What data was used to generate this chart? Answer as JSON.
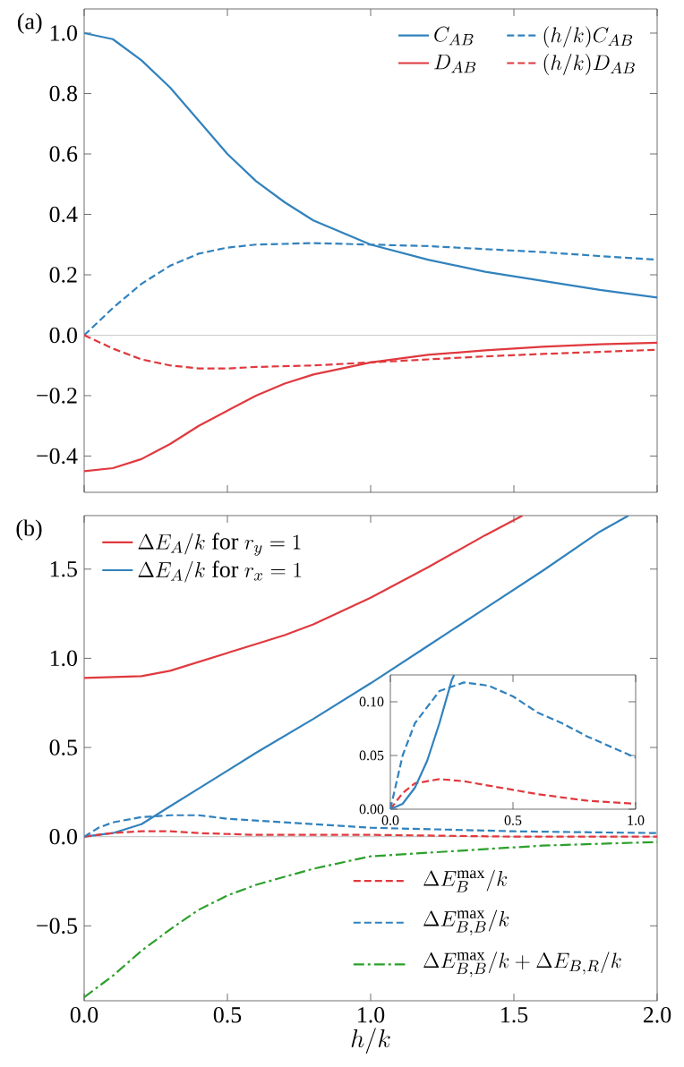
{
  "chart_data": [
    {
      "type": "line",
      "title": "(a)",
      "xlim": [
        0,
        2
      ],
      "ylim": [
        -0.52,
        1.08
      ],
      "tick_labels": "y",
      "legend": "top right",
      "xticks": [
        0,
        0.5,
        1,
        1.5,
        2
      ],
      "yticks": [
        {
          "value": -0.4,
          "label": "−0.4"
        },
        {
          "value": -0.2,
          "label": "−0.2"
        },
        {
          "value": 0,
          "label": "0.0"
        },
        {
          "value": 0.2,
          "label": "0.2"
        },
        {
          "value": 0.4,
          "label": "0.4"
        },
        {
          "value": 0.6,
          "label": "0.6"
        },
        {
          "value": 0.8,
          "label": "0.8"
        },
        {
          "value": 1.0,
          "label": "1.0"
        }
      ],
      "ref_lines": [
        {
          "axis": "y",
          "value": 0,
          "color": "#cccccc"
        }
      ],
      "series": [
        {
          "name": "C_{AB}",
          "color": "#3182bd",
          "line_style": "solid",
          "x": [
            0,
            0.1,
            0.2,
            0.3,
            0.4,
            0.5,
            0.6,
            0.7,
            0.8,
            0.9,
            1.0,
            1.2,
            1.4,
            1.6,
            1.8,
            2.0
          ],
          "values": [
            1.0,
            0.98,
            0.91,
            0.82,
            0.71,
            0.6,
            0.51,
            0.44,
            0.38,
            0.34,
            0.3,
            0.25,
            0.21,
            0.18,
            0.15,
            0.125
          ]
        },
        {
          "name": "(h/k)C_{AB}",
          "color": "#3182bd",
          "line_style": "dashed",
          "x": [
            0,
            0.1,
            0.2,
            0.3,
            0.4,
            0.5,
            0.6,
            0.8,
            1.0,
            1.2,
            1.4,
            1.6,
            1.8,
            2.0
          ],
          "values": [
            0,
            0.09,
            0.17,
            0.23,
            0.27,
            0.29,
            0.3,
            0.305,
            0.3,
            0.295,
            0.285,
            0.275,
            0.262,
            0.25
          ]
        },
        {
          "name": "D_{AB}",
          "color": "#e0393e",
          "line_style": "solid",
          "x": [
            0,
            0.1,
            0.2,
            0.3,
            0.4,
            0.5,
            0.6,
            0.7,
            0.8,
            1.0,
            1.2,
            1.4,
            1.6,
            1.8,
            2.0
          ],
          "values": [
            -0.45,
            -0.44,
            -0.41,
            -0.36,
            -0.3,
            -0.25,
            -0.2,
            -0.16,
            -0.13,
            -0.09,
            -0.065,
            -0.05,
            -0.038,
            -0.03,
            -0.025
          ]
        },
        {
          "name": "(h/k)D_{AB}",
          "color": "#e0393e",
          "line_style": "dashed",
          "x": [
            0,
            0.1,
            0.2,
            0.3,
            0.4,
            0.5,
            0.6,
            0.8,
            1.0,
            1.2,
            1.4,
            1.6,
            1.8,
            2.0
          ],
          "values": [
            0,
            -0.044,
            -0.08,
            -0.1,
            -0.11,
            -0.11,
            -0.105,
            -0.1,
            -0.09,
            -0.08,
            -0.07,
            -0.062,
            -0.055,
            -0.048
          ]
        }
      ]
    },
    {
      "type": "line",
      "title": "(b)",
      "xlabel": "h/k",
      "xlim": [
        0,
        2
      ],
      "ylim": [
        -0.92,
        1.8
      ],
      "legend": "top left",
      "xticks": [
        {
          "value": 0,
          "label": "0.0"
        },
        {
          "value": 0.5,
          "label": "0.5"
        },
        {
          "value": 1.0,
          "label": "1.0"
        },
        {
          "value": 1.5,
          "label": "1.5"
        },
        {
          "value": 2.0,
          "label": "2.0"
        }
      ],
      "yticks": [
        {
          "value": -0.5,
          "label": "−0.5"
        },
        {
          "value": 0,
          "label": "0.0"
        },
        {
          "value": 0.5,
          "label": "0.5"
        },
        {
          "value": 1.0,
          "label": "1.0"
        },
        {
          "value": 1.5,
          "label": "1.5"
        }
      ],
      "ref_lines": [
        {
          "axis": "y",
          "value": 0,
          "color": "#cccccc"
        }
      ],
      "series": [
        {
          "name": "\\Delta E_A/k\\mathrm{\\ for\\ }r_y = 1",
          "color": "#e0393e",
          "line_style": "solid",
          "x": [
            0,
            0.2,
            0.3,
            0.4,
            0.5,
            0.6,
            0.7,
            0.8,
            1.0,
            1.2,
            1.4,
            1.53
          ],
          "values": [
            0.89,
            0.9,
            0.93,
            0.98,
            1.03,
            1.08,
            1.13,
            1.19,
            1.34,
            1.51,
            1.69,
            1.8
          ]
        },
        {
          "name": "\\Delta E_A/k\\mathrm{\\ for\\ }r_x = 1",
          "color": "#3182bd",
          "line_style": "solid",
          "x": [
            0,
            0.1,
            0.2,
            0.25,
            0.3,
            0.4,
            0.5,
            0.6,
            0.8,
            1.0,
            1.2,
            1.4,
            1.6,
            1.8,
            1.9
          ],
          "values": [
            0,
            0.02,
            0.07,
            0.12,
            0.17,
            0.27,
            0.37,
            0.47,
            0.66,
            0.86,
            1.07,
            1.28,
            1.49,
            1.71,
            1.8
          ]
        },
        {
          "name": "\\Delta E_B^{\\mathrm{max}}/k",
          "color": "#e0393e",
          "line_style": "dashed",
          "x": [
            0,
            0.1,
            0.2,
            0.3,
            0.4,
            0.6,
            0.8,
            1.0,
            1.5,
            2.0
          ],
          "values": [
            0,
            0.02,
            0.03,
            0.03,
            0.02,
            0.01,
            0.01,
            0.01,
            0,
            0
          ]
        },
        {
          "name": "\\Delta E_{B,B}^{\\mathrm{max}}/k",
          "color": "#3182bd",
          "line_style": "dashed",
          "x": [
            0,
            0.05,
            0.1,
            0.2,
            0.3,
            0.4,
            0.5,
            0.6,
            0.7,
            0.8,
            0.9,
            1.0,
            1.5,
            2.0
          ],
          "values": [
            0,
            0.05,
            0.08,
            0.11,
            0.12,
            0.12,
            0.1,
            0.09,
            0.08,
            0.07,
            0.06,
            0.05,
            0.03,
            0.02
          ]
        },
        {
          "name": "\\Delta E_{B,B}^{\\mathrm{max}}/k + \\Delta E_{B,R}/k",
          "color": "#2ca02c",
          "line_style": "dashdot",
          "x": [
            0,
            0.1,
            0.2,
            0.3,
            0.4,
            0.5,
            0.6,
            0.8,
            1.0,
            1.2,
            1.4,
            1.6,
            1.8,
            2.0
          ],
          "values": [
            -0.9,
            -0.78,
            -0.64,
            -0.52,
            -0.41,
            -0.33,
            -0.27,
            -0.18,
            -0.11,
            -0.09,
            -0.07,
            -0.05,
            -0.04,
            -0.03
          ]
        }
      ]
    },
    {
      "type": "line",
      "xlim": [
        0,
        1
      ],
      "ylim": [
        0,
        0.125
      ],
      "xticks": [
        {
          "value": 0,
          "label": "0.0"
        },
        {
          "value": 0.5,
          "label": "0.5"
        },
        {
          "value": 1.0,
          "label": "1.0"
        }
      ],
      "yticks": [
        {
          "value": 0,
          "label": "0.00"
        },
        {
          "value": 0.05,
          "label": "0.05"
        },
        {
          "value": 0.1,
          "label": "0.10"
        }
      ],
      "series": [
        {
          "color": "#e0393e",
          "line_style": "dashed",
          "x": [
            0,
            0.05,
            0.1,
            0.2,
            0.3,
            0.4,
            0.5,
            0.6,
            0.7,
            0.8,
            1.0
          ],
          "values": [
            0,
            0.015,
            0.024,
            0.028,
            0.026,
            0.022,
            0.018,
            0.014,
            0.011,
            0.008,
            0.005
          ]
        },
        {
          "color": "#3182bd",
          "line_style": "dashed",
          "x": [
            0,
            0.05,
            0.1,
            0.2,
            0.3,
            0.4,
            0.5,
            0.6,
            0.7,
            0.8,
            0.9,
            1.0
          ],
          "values": [
            0,
            0.05,
            0.08,
            0.11,
            0.118,
            0.115,
            0.105,
            0.09,
            0.08,
            0.068,
            0.058,
            0.048
          ]
        },
        {
          "color": "#3182bd",
          "line_style": "solid",
          "x": [
            0,
            0.05,
            0.1,
            0.15,
            0.2,
            0.25,
            0.26
          ],
          "values": [
            0,
            0.005,
            0.02,
            0.045,
            0.08,
            0.12,
            0.125
          ]
        }
      ]
    }
  ]
}
